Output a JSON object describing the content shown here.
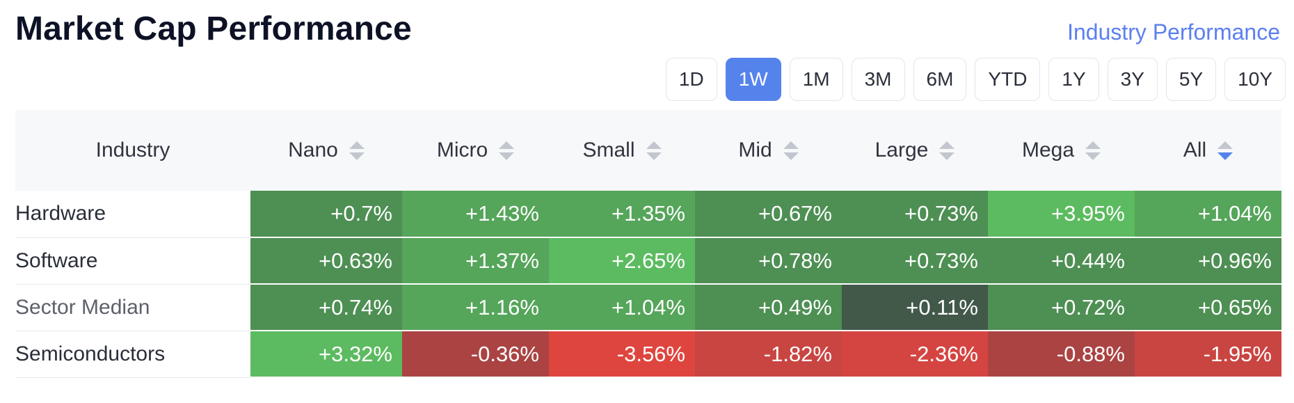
{
  "title": "Market Cap Performance",
  "industry_link": "Industry Performance",
  "ranges": [
    {
      "label": "1D",
      "active": false
    },
    {
      "label": "1W",
      "active": true
    },
    {
      "label": "1M",
      "active": false
    },
    {
      "label": "3M",
      "active": false
    },
    {
      "label": "6M",
      "active": false
    },
    {
      "label": "YTD",
      "active": false
    },
    {
      "label": "1Y",
      "active": false
    },
    {
      "label": "3Y",
      "active": false
    },
    {
      "label": "5Y",
      "active": false
    },
    {
      "label": "10Y",
      "active": false
    }
  ],
  "table": {
    "headers": [
      "Industry",
      "Nano",
      "Micro",
      "Small",
      "Mid",
      "Large",
      "Mega",
      "All"
    ],
    "sort_column": "All",
    "rows": [
      {
        "name": "Hardware",
        "cells": [
          {
            "v": "+0.7%",
            "color": "#4e8f53"
          },
          {
            "v": "+1.43%",
            "color": "#55a55a"
          },
          {
            "v": "+1.35%",
            "color": "#55a55a"
          },
          {
            "v": "+0.67%",
            "color": "#4e8f53"
          },
          {
            "v": "+0.73%",
            "color": "#4e8f53"
          },
          {
            "v": "+3.95%",
            "color": "#5cbb60"
          },
          {
            "v": "+1.04%",
            "color": "#55a55a"
          }
        ]
      },
      {
        "name": "Software",
        "cells": [
          {
            "v": "+0.63%",
            "color": "#4e8f53"
          },
          {
            "v": "+1.37%",
            "color": "#55a55a"
          },
          {
            "v": "+2.65%",
            "color": "#5cbb60"
          },
          {
            "v": "+0.78%",
            "color": "#4e8f53"
          },
          {
            "v": "+0.73%",
            "color": "#4e8f53"
          },
          {
            "v": "+0.44%",
            "color": "#4e8f53"
          },
          {
            "v": "+0.96%",
            "color": "#4e8f53"
          }
        ]
      },
      {
        "name": "Sector Median",
        "median": true,
        "cells": [
          {
            "v": "+0.74%",
            "color": "#4e8f53"
          },
          {
            "v": "+1.16%",
            "color": "#55a55a"
          },
          {
            "v": "+1.04%",
            "color": "#55a55a"
          },
          {
            "v": "+0.49%",
            "color": "#4e8f53"
          },
          {
            "v": "+0.11%",
            "color": "#42594a"
          },
          {
            "v": "+0.72%",
            "color": "#4e8f53"
          },
          {
            "v": "+0.65%",
            "color": "#4e8f53"
          }
        ]
      },
      {
        "name": "Semiconductors",
        "cells": [
          {
            "v": "+3.32%",
            "color": "#5cbb60"
          },
          {
            "v": "-0.36%",
            "color": "#ab4343"
          },
          {
            "v": "-3.56%",
            "color": "#df453f"
          },
          {
            "v": "-1.82%",
            "color": "#c94542"
          },
          {
            "v": "-2.36%",
            "color": "#d44541"
          },
          {
            "v": "-0.88%",
            "color": "#ab4343"
          },
          {
            "v": "-1.95%",
            "color": "#c94542"
          }
        ]
      }
    ]
  }
}
